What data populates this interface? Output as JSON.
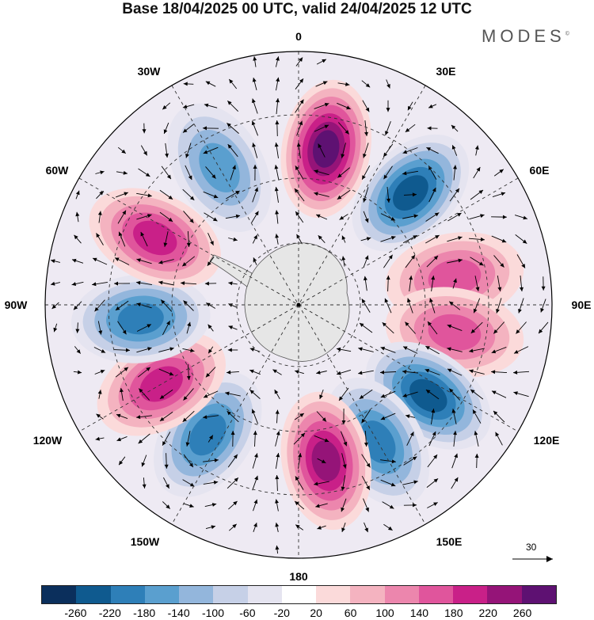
{
  "title": "Base 18/04/2025 00 UTC, valid 24/04/2025 12 UTC",
  "brand": {
    "name": "MODES",
    "mark": "©"
  },
  "longitude_labels": {
    "lon_0": "0",
    "lon_30e": "30E",
    "lon_60e": "60E",
    "lon_90e": "90E",
    "lon_120e": "120E",
    "lon_150e": "150E",
    "lon_180": "180",
    "lon_150w": "150W",
    "lon_120w": "120W",
    "lon_90w": "90W",
    "lon_60w": "60W",
    "lon_30w": "30W"
  },
  "reference_vector": {
    "label": "30"
  },
  "colorbar": {
    "colors": [
      "#0b2f5c",
      "#0f5a8f",
      "#2e7fb8",
      "#5a9fcf",
      "#93b6dc",
      "#c6d0e7",
      "#e5e4f0",
      "#ffffff",
      "#fbdada",
      "#f4b3c0",
      "#ec86ad",
      "#e0559c",
      "#c92088",
      "#951478",
      "#5e1172"
    ],
    "ticks": [
      "-260",
      "-220",
      "-180",
      "-140",
      "-100",
      "-60",
      "-20",
      "20",
      "60",
      "100",
      "140",
      "180",
      "220",
      "260"
    ]
  },
  "anomaly_centers": [
    {
      "lon": 10,
      "sign": "positive",
      "value": 240
    },
    {
      "lon": 45,
      "sign": "negative",
      "value": -220
    },
    {
      "lon": 80,
      "sign": "positive",
      "value": 140
    },
    {
      "lon": 100,
      "sign": "positive",
      "value": 130
    },
    {
      "lon": 125,
      "sign": "negative",
      "value": -220
    },
    {
      "lon": 150,
      "sign": "negative",
      "value": -180
    },
    {
      "lon": 170,
      "sign": "positive",
      "value": 220
    },
    {
      "lon": 215,
      "sign": "negative",
      "value": -160
    },
    {
      "lon": 240,
      "sign": "positive",
      "value": 180
    },
    {
      "lon": 265,
      "sign": "negative",
      "value": -180
    },
    {
      "lon": 295,
      "sign": "positive",
      "value": 170
    },
    {
      "lon": 330,
      "sign": "negative",
      "value": -120
    }
  ]
}
